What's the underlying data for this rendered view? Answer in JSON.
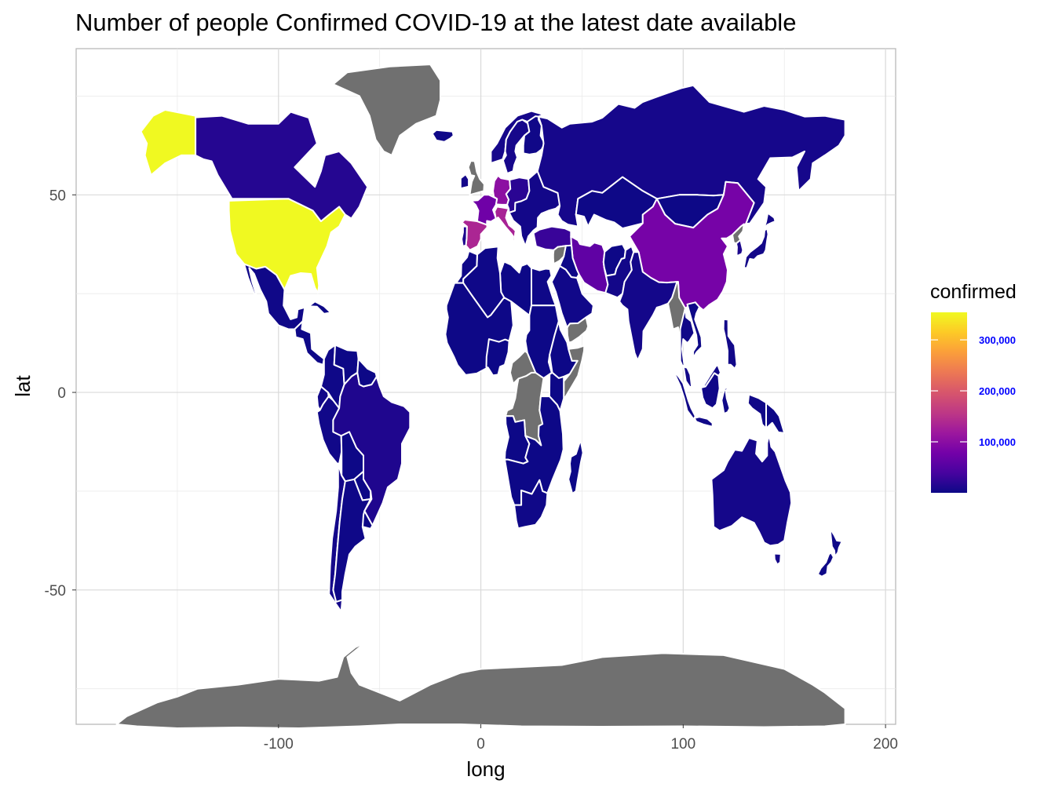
{
  "chart_data": {
    "type": "choropleth-map",
    "title": "Number of people Confirmed COVID-19 at the latest date available",
    "xlabel": "long",
    "ylabel": "lat",
    "xlim": [
      -200,
      205
    ],
    "ylim": [
      -84,
      87
    ],
    "x_ticks": [
      -100,
      0,
      100,
      200
    ],
    "x_tick_labels": [
      "-100",
      "0",
      "100",
      "200"
    ],
    "y_ticks": [
      -50,
      0,
      50
    ],
    "y_tick_labels": [
      "-50",
      "0",
      "50"
    ],
    "grid": true,
    "legend": {
      "title": "confirmed",
      "position": "right",
      "min": 0,
      "max": 354000,
      "breaks": [
        100000,
        200000,
        300000
      ],
      "break_labels": [
        "100,000",
        "200,000",
        "300,000"
      ],
      "colors": [
        "#0d0887",
        "#47039f",
        "#7301a8",
        "#9c179e",
        "#bd3786",
        "#d8576b",
        "#ed7953",
        "#fb9f3a",
        "#fdca26",
        "#f0f921"
      ],
      "na_color": "#707070"
    },
    "regions": [
      {
        "name": "Alaska",
        "value": 354000
      },
      {
        "name": "United States",
        "value": 354000
      },
      {
        "name": "Canada",
        "value": 16000
      },
      {
        "name": "Mexico",
        "value": 2000
      },
      {
        "name": "Central America",
        "value": 1000
      },
      {
        "name": "Cuba",
        "value": 300
      },
      {
        "name": "Colombia",
        "value": 1500
      },
      {
        "name": "Venezuela",
        "value": 160
      },
      {
        "name": "Ecuador",
        "value": 3700
      },
      {
        "name": "Peru",
        "value": 2500
      },
      {
        "name": "Brazil",
        "value": 12000
      },
      {
        "name": "Bolivia",
        "value": 200
      },
      {
        "name": "Paraguay",
        "value": 100
      },
      {
        "name": "Chile",
        "value": 4800
      },
      {
        "name": "Argentina",
        "value": 1600
      },
      {
        "name": "Uruguay",
        "value": 400
      },
      {
        "name": "Guianas",
        "value": 100
      },
      {
        "name": "Greenland",
        "value": null
      },
      {
        "name": "Iceland",
        "value": 1500
      },
      {
        "name": "United Kingdom",
        "value": null
      },
      {
        "name": "Ireland",
        "value": 5000
      },
      {
        "name": "Norway",
        "value": 5800
      },
      {
        "name": "Sweden",
        "value": 7000
      },
      {
        "name": "Finland",
        "value": 2000
      },
      {
        "name": "France",
        "value": 75000
      },
      {
        "name": "Spain",
        "value": 136000
      },
      {
        "name": "Portugal",
        "value": 11000
      },
      {
        "name": "Italy",
        "value": 132000
      },
      {
        "name": "Germany",
        "value": 103000
      },
      {
        "name": "Central Europe",
        "value": 20000
      },
      {
        "name": "Eastern Europe",
        "value": 4000
      },
      {
        "name": "Turkey",
        "value": 30000
      },
      {
        "name": "Russia",
        "value": 6300
      },
      {
        "name": "Kazakhstan",
        "value": 700
      },
      {
        "name": "Mongolia",
        "value": 20
      },
      {
        "name": "China",
        "value": 82000
      },
      {
        "name": "Iran",
        "value": 62000
      },
      {
        "name": "Afghanistan",
        "value": 400
      },
      {
        "name": "Pakistan",
        "value": 4000
      },
      {
        "name": "India",
        "value": 5000
      },
      {
        "name": "Myanmar",
        "value": null
      },
      {
        "name": "Thailand",
        "value": 2200
      },
      {
        "name": "Vietnam",
        "value": 250
      },
      {
        "name": "Japan",
        "value": 4000
      },
      {
        "name": "South Korea",
        "value": 10000
      },
      {
        "name": "North Korea",
        "value": null
      },
      {
        "name": "Saudi Arabia",
        "value": 2800
      },
      {
        "name": "Yemen",
        "value": null
      },
      {
        "name": "Iraq",
        "value": 1000
      },
      {
        "name": "Syria",
        "value": null
      },
      {
        "name": "Egypt",
        "value": 1300
      },
      {
        "name": "Libya",
        "value": 20
      },
      {
        "name": "Algeria",
        "value": 1400
      },
      {
        "name": "Morocco",
        "value": 1100
      },
      {
        "name": "West Africa",
        "value": 500
      },
      {
        "name": "Nigeria",
        "value": 250
      },
      {
        "name": "Sudan",
        "value": 15
      },
      {
        "name": "Ethiopia",
        "value": 50
      },
      {
        "name": "Somalia",
        "value": null
      },
      {
        "name": "Democratic Republic of the Congo",
        "value": null
      },
      {
        "name": "Central African Republic",
        "value": null
      },
      {
        "name": "Kenya",
        "value": 150
      },
      {
        "name": "Angola",
        "value": 15
      },
      {
        "name": "Southern Africa",
        "value": 100
      },
      {
        "name": "South Africa",
        "value": 1700
      },
      {
        "name": "Madagascar",
        "value": 80
      },
      {
        "name": "Indonesia",
        "value": 2300
      },
      {
        "name": "Philippines",
        "value": 3200
      },
      {
        "name": "Malaysia",
        "value": 3600
      },
      {
        "name": "Papua New Guinea",
        "value": 1
      },
      {
        "name": "Australia",
        "value": 5600
      },
      {
        "name": "New Zealand",
        "value": 1000
      },
      {
        "name": "Antarctica",
        "value": null
      }
    ]
  }
}
